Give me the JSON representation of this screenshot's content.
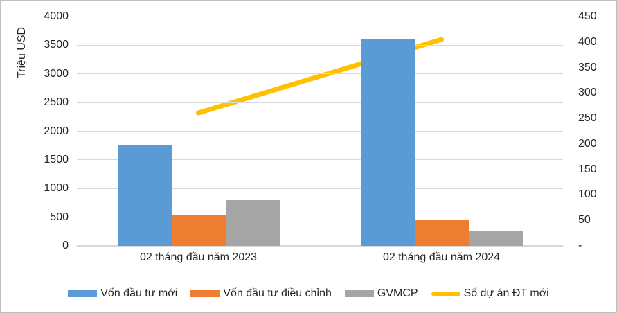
{
  "chart_data": {
    "type": "bar",
    "subtype": "combo-bar-line",
    "categories": [
      "02 tháng đầu năm 2023",
      "02 tháng đầu năm 2024"
    ],
    "series": [
      {
        "name": "Vốn đầu tư mới",
        "type": "bar",
        "axis": "left",
        "color": "#5B9BD5",
        "values": [
          1760,
          3600
        ]
      },
      {
        "name": "Vốn đầu tư điều chỉnh",
        "type": "bar",
        "axis": "left",
        "color": "#ED7D31",
        "values": [
          535,
          442
        ]
      },
      {
        "name": "GVMCP",
        "type": "bar",
        "axis": "left",
        "color": "#A5A5A5",
        "values": [
          798,
          255
        ]
      },
      {
        "name": "Số dự án ĐT mới",
        "type": "line",
        "axis": "right",
        "color": "#FFC000",
        "values": [
          261,
          405
        ]
      }
    ],
    "left_axis": {
      "title": "Triệu USD",
      "min": 0,
      "max": 4000,
      "step": 500,
      "tick_labels": [
        "0",
        "500",
        "1000",
        "1500",
        "2000",
        "2500",
        "3000",
        "3500",
        "4000"
      ]
    },
    "right_axis": {
      "min": 0,
      "max": 450,
      "step": 50,
      "tick_labels": [
        "-",
        "50",
        "100",
        "150",
        "200",
        "250",
        "300",
        "350",
        "400",
        "450"
      ]
    },
    "grid": true,
    "grid_color": "#D9D9D9",
    "legend_position": "bottom"
  }
}
